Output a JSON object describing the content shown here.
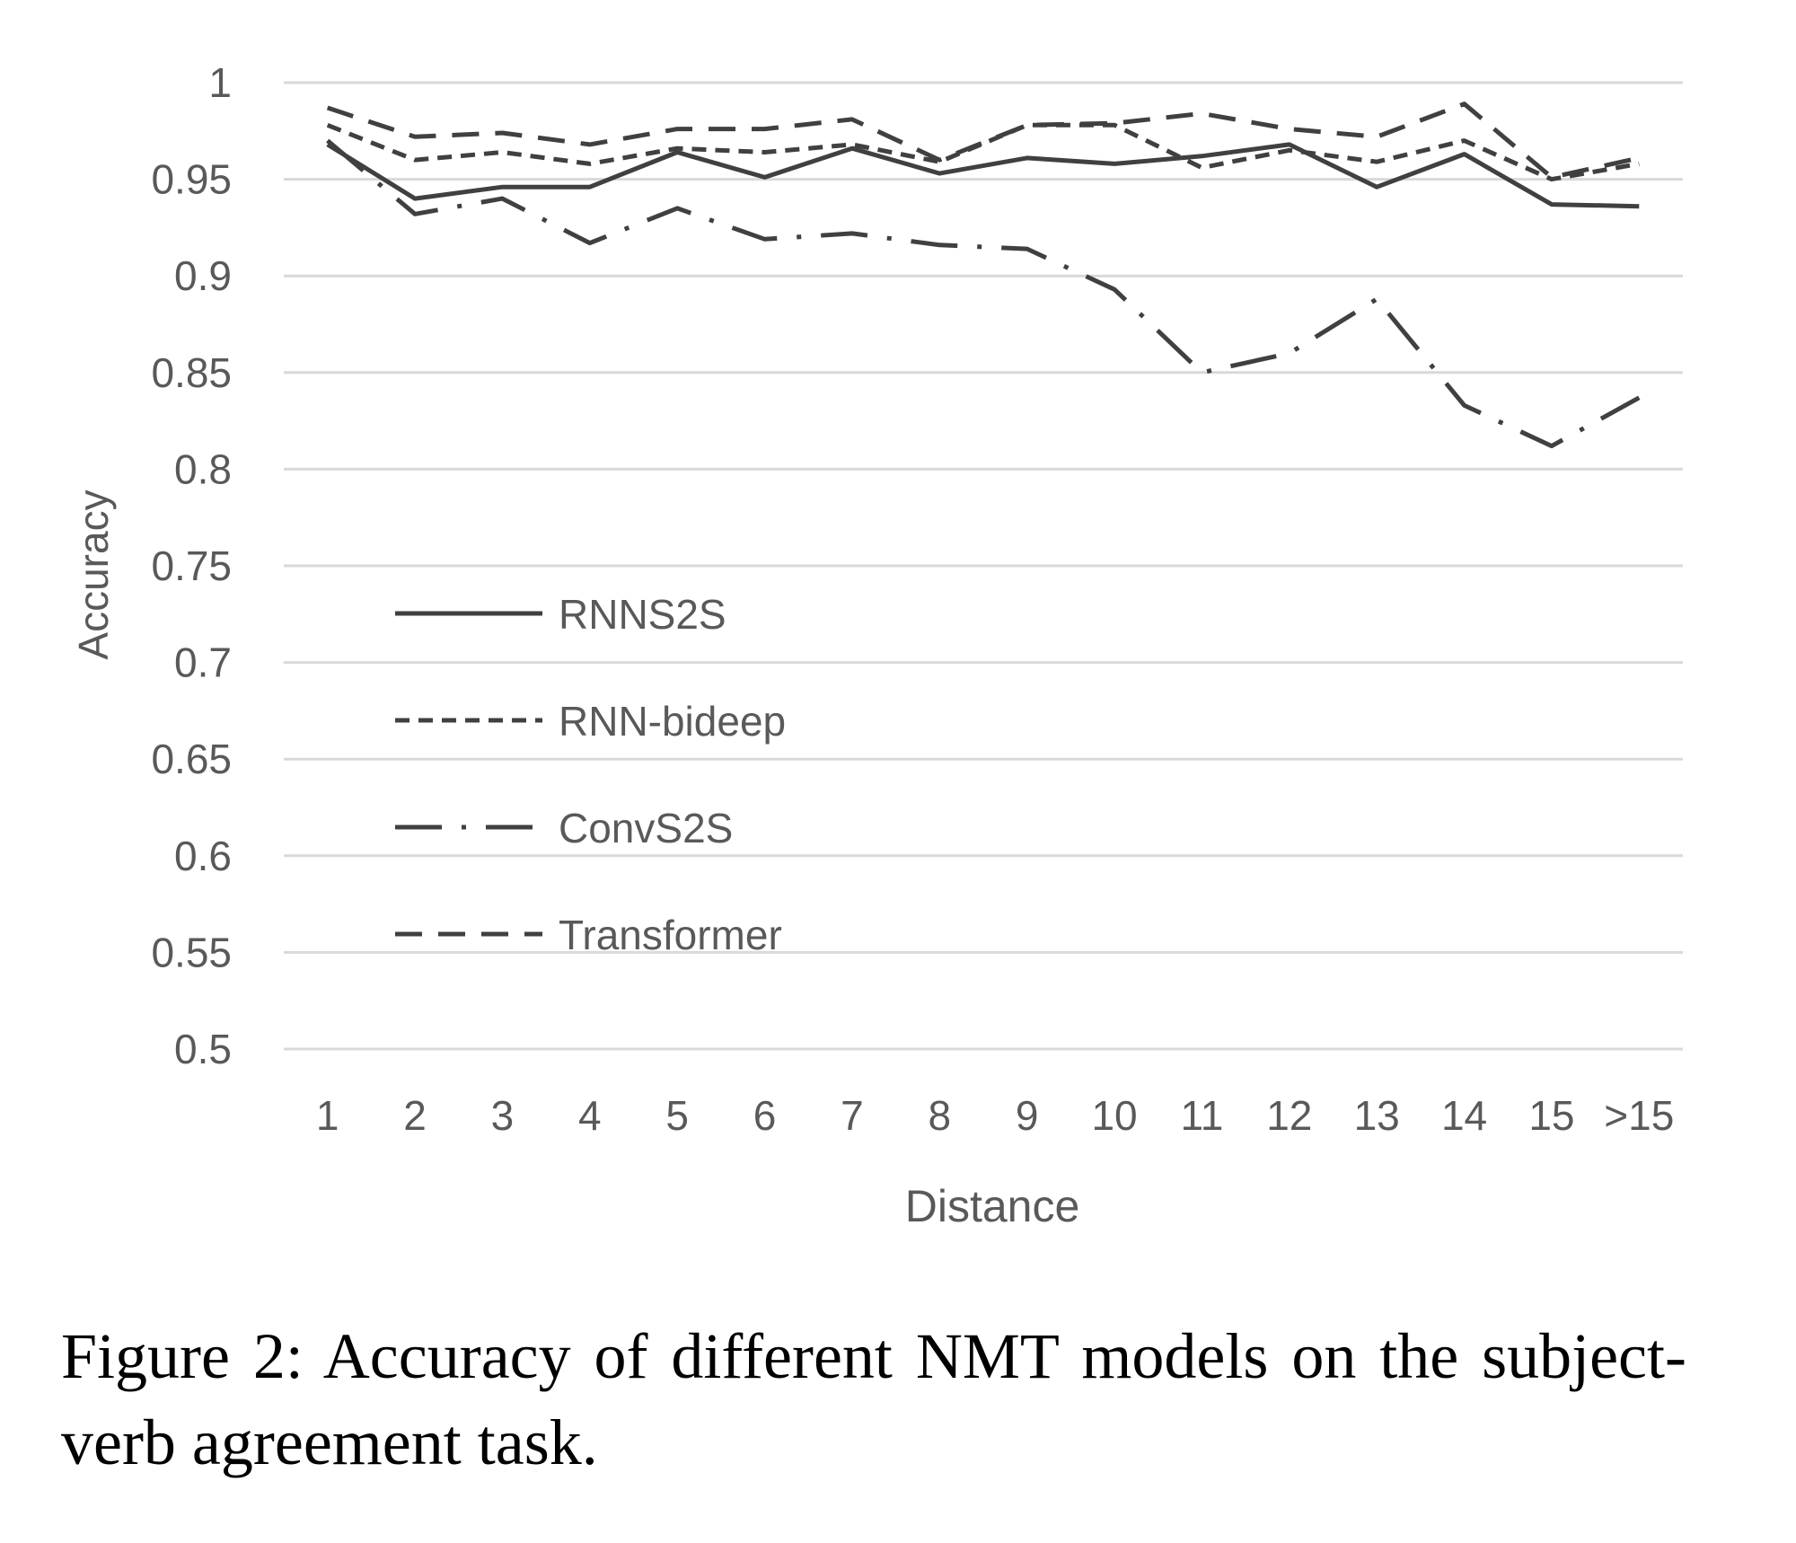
{
  "chart_data": {
    "type": "line",
    "title": "",
    "xlabel": "Distance",
    "ylabel": "Accuracy",
    "ylim": [
      0.5,
      1
    ],
    "yticks": [
      "1",
      "0.95",
      "0.9",
      "0.85",
      "0.8",
      "0.75",
      "0.7",
      "0.65",
      "0.6",
      "0.55",
      "0.5"
    ],
    "categories": [
      "1",
      "2",
      "3",
      "4",
      "5",
      "6",
      "7",
      "8",
      "9",
      "10",
      "11",
      "12",
      "13",
      "14",
      "15",
      ">15"
    ],
    "grid": true,
    "legend_position": "lower-left",
    "series": [
      {
        "name": "RNNS2S",
        "style": "solid",
        "color": "#404040",
        "values": [
          0.968,
          0.94,
          0.946,
          0.946,
          0.964,
          0.951,
          0.966,
          0.953,
          0.961,
          0.958,
          0.962,
          0.968,
          0.946,
          0.963,
          0.937,
          0.936
        ]
      },
      {
        "name": "RNN-bideep",
        "style": "short-dash",
        "color": "#404040",
        "values": [
          0.978,
          0.96,
          0.964,
          0.958,
          0.966,
          0.964,
          0.968,
          0.959,
          0.978,
          0.978,
          0.956,
          0.965,
          0.959,
          0.97,
          0.95,
          0.958
        ]
      },
      {
        "name": "ConvS2S",
        "style": "dash-dot",
        "color": "#404040",
        "values": [
          0.97,
          0.932,
          0.94,
          0.917,
          0.935,
          0.919,
          0.922,
          0.916,
          0.914,
          0.893,
          0.85,
          0.86,
          0.888,
          0.833,
          0.812,
          0.837
        ]
      },
      {
        "name": "Transformer",
        "style": "long-dash",
        "color": "#404040",
        "values": [
          0.987,
          0.972,
          0.974,
          0.968,
          0.976,
          0.976,
          0.981,
          0.96,
          0.978,
          0.979,
          0.984,
          0.976,
          0.972,
          0.989,
          0.951,
          0.961
        ]
      }
    ]
  },
  "caption": "Figure 2:  Accuracy of different NMT models on the subject-verb agreement task."
}
